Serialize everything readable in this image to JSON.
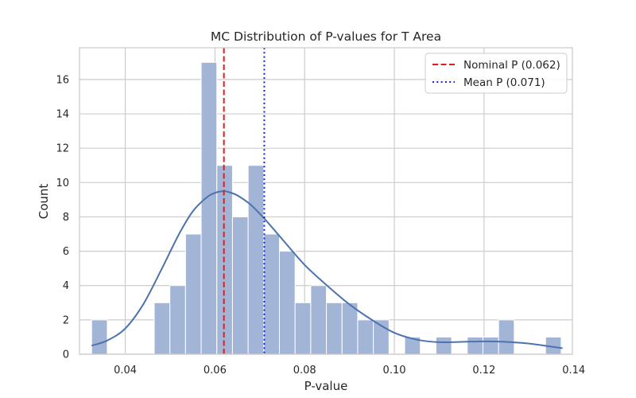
{
  "chart_data": {
    "type": "histogram",
    "title": "MC Distribution of P-values for T Area",
    "xlabel": "P-value",
    "ylabel": "Count",
    "xlim": [
      0.0298,
      0.1397
    ],
    "ylim": [
      0,
      17.85
    ],
    "x_ticks": [
      0.04,
      0.06,
      0.08,
      0.1,
      0.12,
      0.14
    ],
    "x_tick_labels": [
      "0.04",
      "0.06",
      "0.08",
      "0.10",
      "0.12",
      "0.14"
    ],
    "y_ticks": [
      0,
      2,
      4,
      6,
      8,
      10,
      12,
      14,
      16
    ],
    "y_tick_labels": [
      "0",
      "2",
      "4",
      "6",
      "8",
      "10",
      "12",
      "14",
      "16"
    ],
    "grid": true,
    "legend_position": "top-right",
    "bin_start": 0.0325,
    "bin_width": 0.00349,
    "counts": [
      2,
      0,
      0,
      0,
      3,
      4,
      7,
      17,
      11,
      8,
      11,
      7,
      6,
      3,
      4,
      3,
      3,
      2,
      2,
      0,
      1,
      0,
      1,
      0,
      1,
      1,
      2,
      0,
      0,
      1
    ],
    "kde": {
      "x": [
        0.0325,
        0.036,
        0.04,
        0.044,
        0.048,
        0.052,
        0.055,
        0.058,
        0.06,
        0.062,
        0.063,
        0.065,
        0.068,
        0.071,
        0.075,
        0.08,
        0.085,
        0.09,
        0.095,
        0.1,
        0.105,
        0.11,
        0.115,
        0.12,
        0.125,
        0.13,
        0.1375
      ],
      "y": [
        0.5,
        0.8,
        1.5,
        2.9,
        4.9,
        7.0,
        8.3,
        9.1,
        9.4,
        9.5,
        9.45,
        9.25,
        8.7,
        7.9,
        6.7,
        5.2,
        4.0,
        2.9,
        2.0,
        1.25,
        0.85,
        0.7,
        0.72,
        0.75,
        0.72,
        0.62,
        0.35
      ]
    },
    "vlines": [
      {
        "name": "Nominal P (0.062)",
        "x": 0.062,
        "color": "#e41a1c",
        "style": "dashed"
      },
      {
        "name": "Mean P (0.071)",
        "x": 0.071,
        "color": "#1f1fd6",
        "style": "dotted"
      }
    ],
    "colors": {
      "bar_fill": "#a3b5d6",
      "bar_stroke": "#ffffff",
      "kde_line": "#4c72b0",
      "grid": "#cccccc",
      "spine": "#cccccc"
    }
  }
}
